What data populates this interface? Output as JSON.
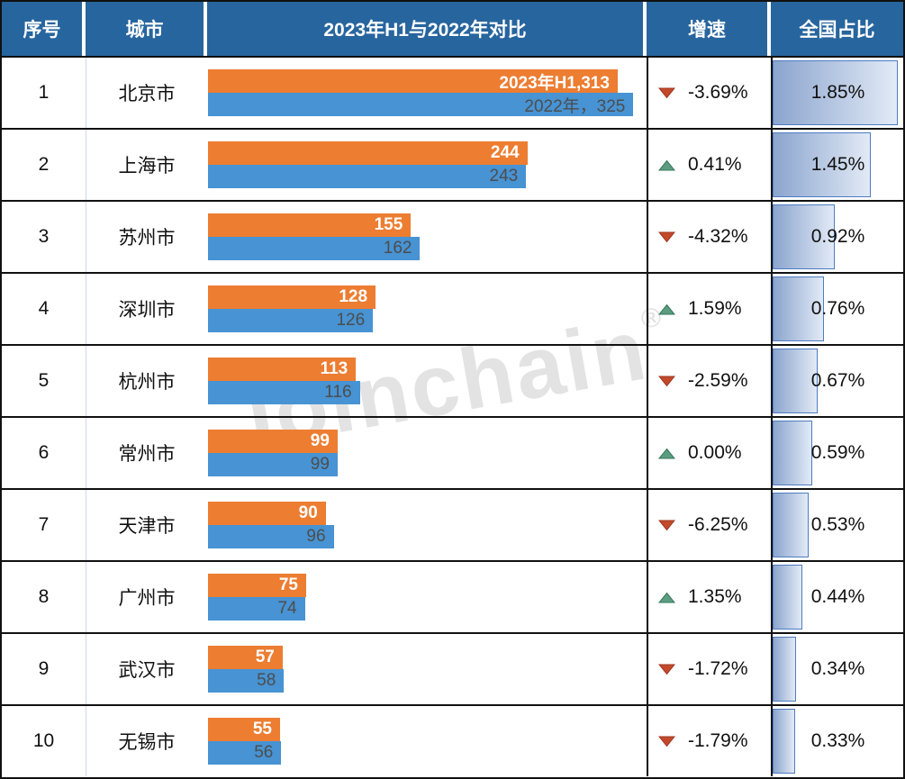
{
  "header": {
    "col_index": "序号",
    "col_city": "城市",
    "col_compare": "2023年H1与2022年对比",
    "col_growth": "增速",
    "col_share": "全国占比"
  },
  "watermark": {
    "text": "Joinchain",
    "registered": "®"
  },
  "colors": {
    "header_bg": "#27659E",
    "bar_2023": "#ED7D31",
    "bar_2022": "#4793D3",
    "up_triangle_fill": "#5C9D80",
    "up_triangle_stroke": "#35745B",
    "down_triangle_fill": "#C3492B",
    "down_triangle_stroke": "#9E3620",
    "share_bar_gradient_left": "#8BA5CE",
    "share_bar_gradient_right": "#E2EAF6",
    "share_bar_border": "#4D7CC1"
  },
  "chart_data": {
    "type": "bar",
    "orientation": "horizontal",
    "title": "2023年H1与2022年对比",
    "categories": [
      "北京市",
      "上海市",
      "苏州市",
      "深圳市",
      "杭州市",
      "常州市",
      "天津市",
      "广州市",
      "武汉市",
      "无锡市"
    ],
    "series": [
      {
        "name": "2023年H1",
        "color": "#ED7D31",
        "values": [
          313,
          244,
          155,
          128,
          113,
          99,
          90,
          75,
          57,
          55
        ]
      },
      {
        "name": "2022年",
        "color": "#4793D3",
        "values": [
          325,
          243,
          162,
          126,
          116,
          99,
          96,
          74,
          58,
          56
        ]
      }
    ],
    "growth_pct": [
      -3.69,
      0.41,
      -4.32,
      1.59,
      -2.59,
      0.0,
      -6.25,
      1.35,
      -1.72,
      -1.79
    ],
    "national_share_pct": [
      1.85,
      1.45,
      0.92,
      0.76,
      0.67,
      0.59,
      0.53,
      0.44,
      0.34,
      0.33
    ],
    "x_axis_scale_max": 325,
    "grid": false,
    "legend": "labels inside first row bars"
  },
  "bar_scale_max": 325,
  "bar_max_width_pct": 97,
  "share_scale_max": 1.85,
  "share_max_width_pct": 96,
  "rows": [
    {
      "index": "1",
      "city": "北京市",
      "v2023": 313,
      "v2022": 325,
      "label2023": "2023年H1,313",
      "label2022": "2022年，325",
      "growth": "-3.69%",
      "direction": "down",
      "share": "1.85%",
      "share_value": 1.85
    },
    {
      "index": "2",
      "city": "上海市",
      "v2023": 244,
      "v2022": 243,
      "label2023": "244",
      "label2022": "243",
      "growth": "0.41%",
      "direction": "up",
      "share": "1.45%",
      "share_value": 1.45
    },
    {
      "index": "3",
      "city": "苏州市",
      "v2023": 155,
      "v2022": 162,
      "label2023": "155",
      "label2022": "162",
      "growth": "-4.32%",
      "direction": "down",
      "share": "0.92%",
      "share_value": 0.92
    },
    {
      "index": "4",
      "city": "深圳市",
      "v2023": 128,
      "v2022": 126,
      "label2023": "128",
      "label2022": "126",
      "growth": "1.59%",
      "direction": "up",
      "share": "0.76%",
      "share_value": 0.76
    },
    {
      "index": "5",
      "city": "杭州市",
      "v2023": 113,
      "v2022": 116,
      "label2023": "113",
      "label2022": "116",
      "growth": "-2.59%",
      "direction": "down",
      "share": "0.67%",
      "share_value": 0.67
    },
    {
      "index": "6",
      "city": "常州市",
      "v2023": 99,
      "v2022": 99,
      "label2023": "99",
      "label2022": "99",
      "growth": "0.00%",
      "direction": "up",
      "share": "0.59%",
      "share_value": 0.59
    },
    {
      "index": "7",
      "city": "天津市",
      "v2023": 90,
      "v2022": 96,
      "label2023": "90",
      "label2022": "96",
      "growth": "-6.25%",
      "direction": "down",
      "share": "0.53%",
      "share_value": 0.53
    },
    {
      "index": "8",
      "city": "广州市",
      "v2023": 75,
      "v2022": 74,
      "label2023": "75",
      "label2022": "74",
      "growth": "1.35%",
      "direction": "up",
      "share": "0.44%",
      "share_value": 0.44
    },
    {
      "index": "9",
      "city": "武汉市",
      "v2023": 57,
      "v2022": 58,
      "label2023": "57",
      "label2022": "58",
      "growth": "-1.72%",
      "direction": "down",
      "share": "0.34%",
      "share_value": 0.34
    },
    {
      "index": "10",
      "city": "无锡市",
      "v2023": 55,
      "v2022": 56,
      "label2023": "55",
      "label2022": "56",
      "growth": "-1.79%",
      "direction": "down",
      "share": "0.33%",
      "share_value": 0.33
    }
  ]
}
